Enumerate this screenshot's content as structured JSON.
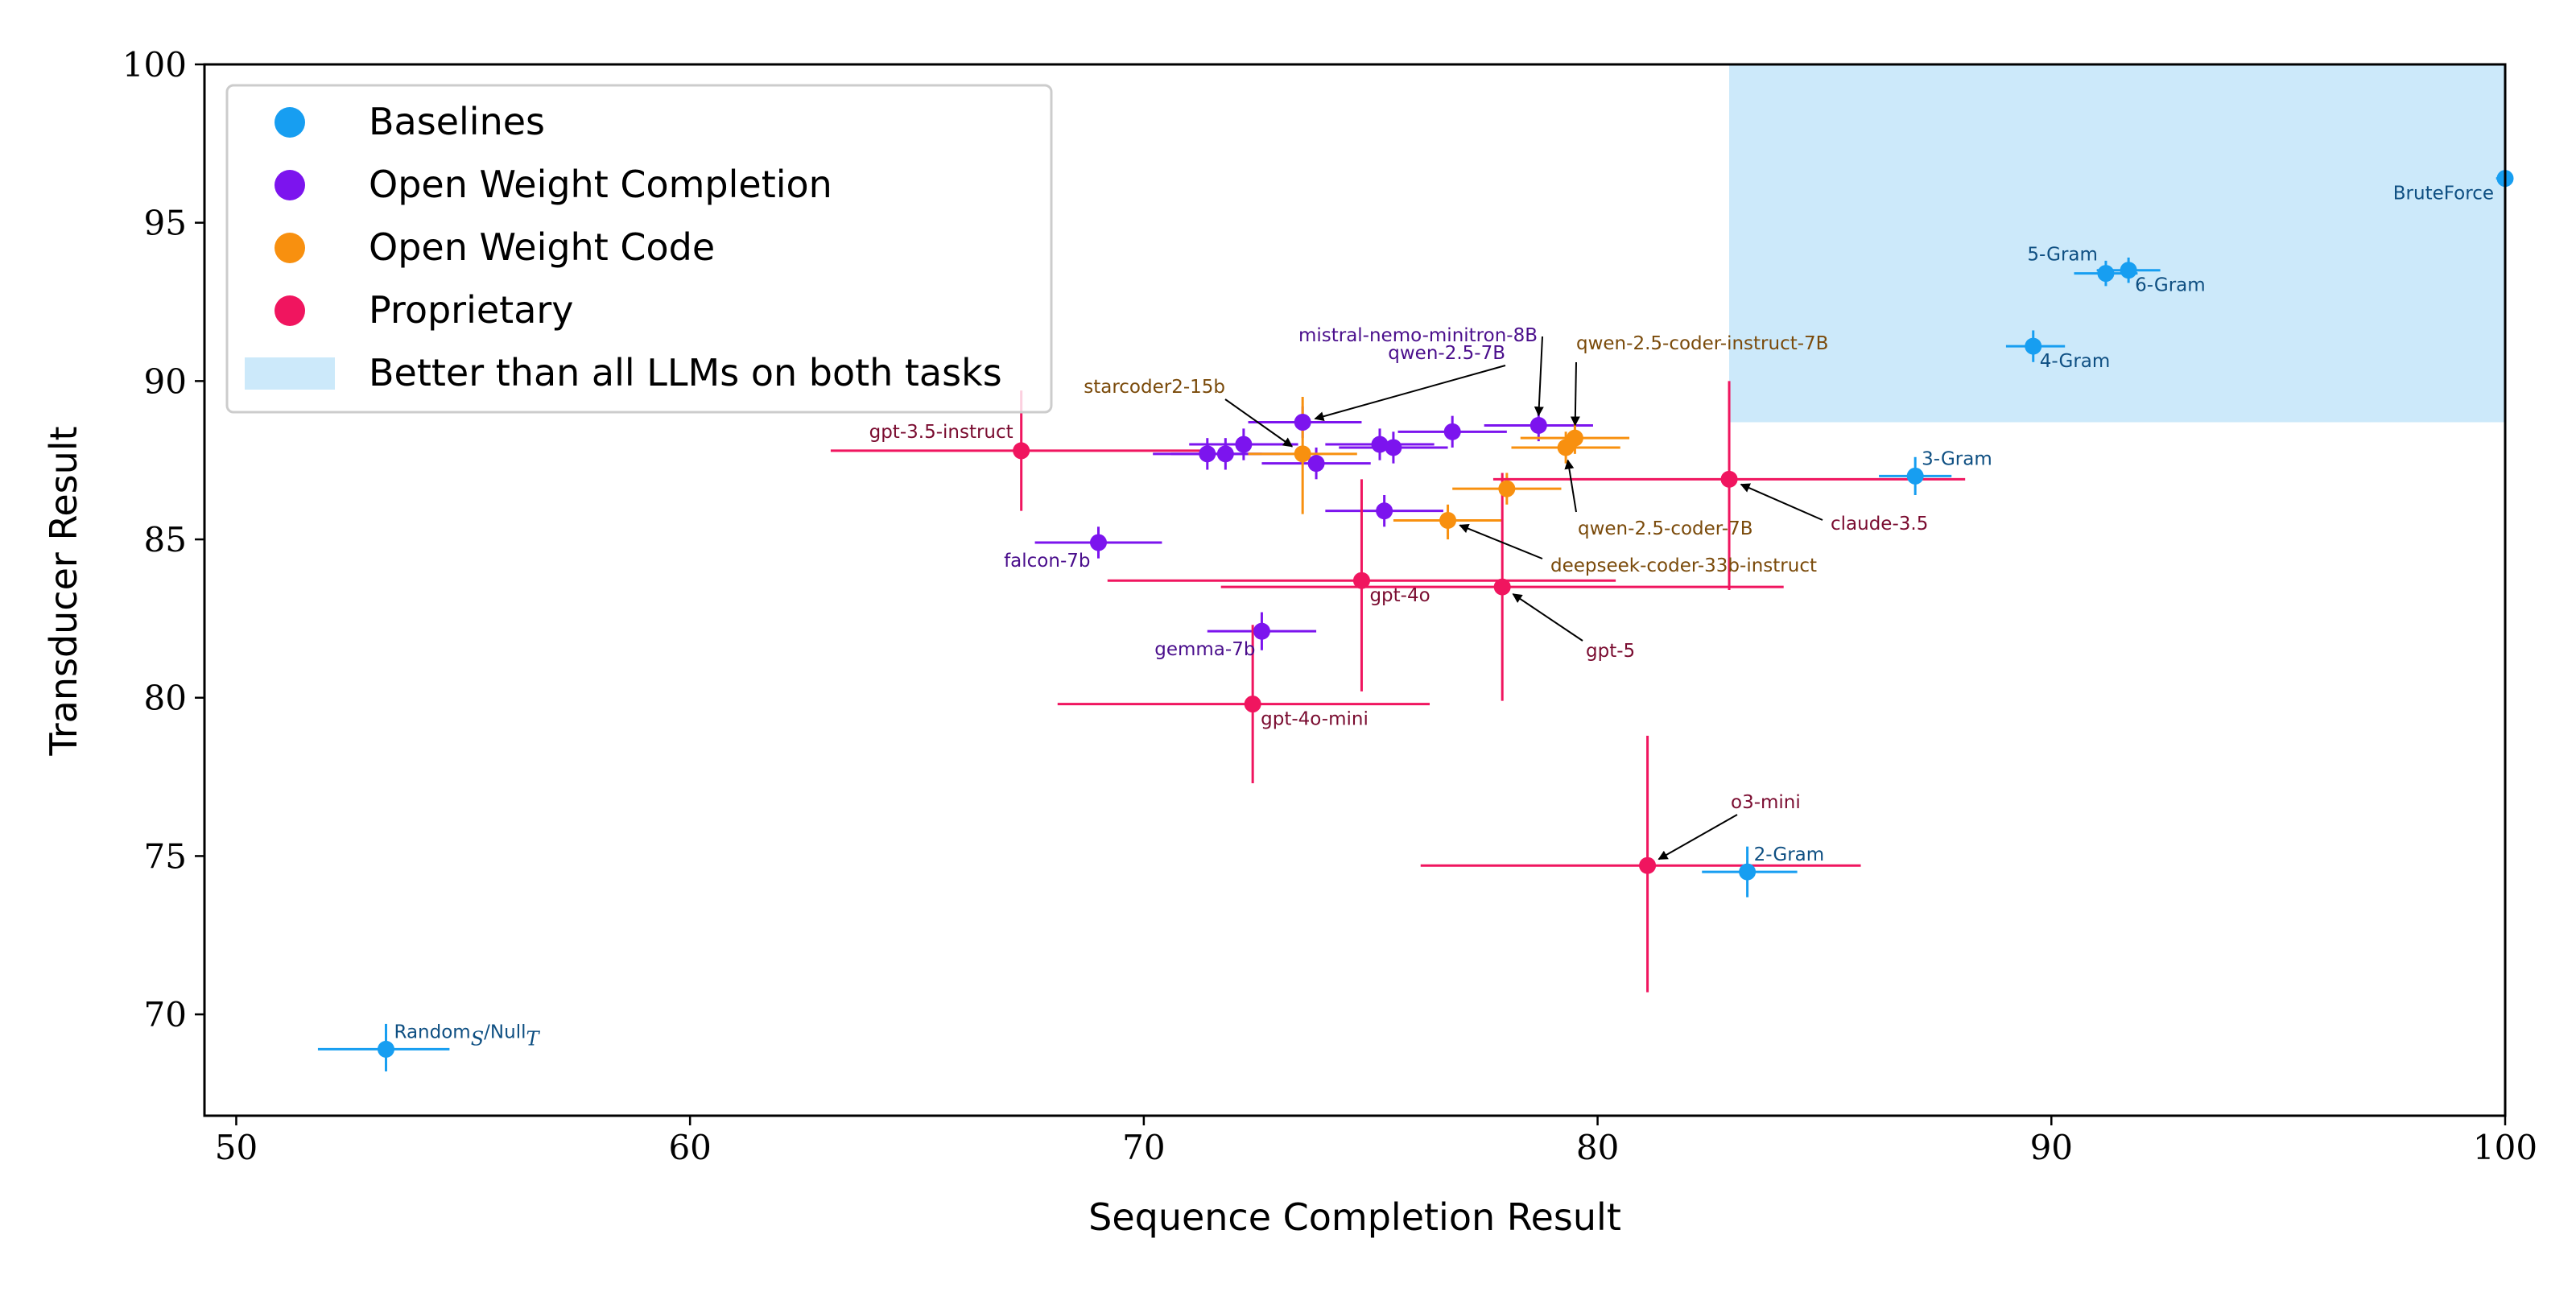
{
  "chart_data": {
    "type": "scatter",
    "title": "",
    "xlabel": "Sequence Completion Result",
    "ylabel": "Transducer Result",
    "xlim": [
      49.3,
      100
    ],
    "ylim": [
      66.8,
      100
    ],
    "xticks": [
      50,
      60,
      70,
      80,
      90,
      100
    ],
    "yticks": [
      70,
      75,
      80,
      85,
      90,
      95,
      100
    ],
    "grid": false,
    "legend_position": "top-left",
    "legend": [
      {
        "label": "Baselines",
        "kind": "marker",
        "color": "#179ef1"
      },
      {
        "label": "Open Weight Completion",
        "kind": "marker",
        "color": "#7c14ee"
      },
      {
        "label": "Open Weight Code",
        "kind": "marker",
        "color": "#f8900f"
      },
      {
        "label": "Proprietary",
        "kind": "marker",
        "color": "#f0155f"
      },
      {
        "label": "Better than all LLMs on both tasks",
        "kind": "patch",
        "color": "#cce9fa"
      }
    ],
    "region": {
      "label": "Better than all LLMs on both tasks",
      "x": [
        82.9,
        100
      ],
      "y": [
        88.7,
        100
      ],
      "color": "#cce9fa"
    },
    "groups": [
      {
        "name": "Baselines",
        "color": "#179ef1",
        "label_color": "#0e4f82"
      },
      {
        "name": "Open Weight Completion",
        "color": "#7c14ee",
        "label_color": "#4a0e8c"
      },
      {
        "name": "Open Weight Code",
        "color": "#f8900f",
        "label_color": "#7a4a0a"
      },
      {
        "name": "Proprietary",
        "color": "#f0155f",
        "label_color": "#7a0c30"
      }
    ],
    "points": [
      {
        "label": "",
        "label_main": "Random",
        "label_sub1": "S",
        "label_sep": "/Null",
        "label_sub2": "T",
        "group": 0,
        "x": 53.3,
        "xerr": [
          51.8,
          54.7
        ],
        "y": 68.9,
        "yerr": [
          68.2,
          69.7
        ]
      },
      {
        "label": "2-Gram",
        "group": 0,
        "x": 83.3,
        "xerr": [
          82.3,
          84.4
        ],
        "y": 74.5,
        "yerr": [
          73.7,
          75.3
        ]
      },
      {
        "label": "3-Gram",
        "group": 0,
        "x": 87.0,
        "xerr": [
          86.2,
          87.8
        ],
        "y": 87.0,
        "yerr": [
          86.4,
          87.6
        ]
      },
      {
        "label": "4-Gram",
        "group": 0,
        "x": 89.6,
        "xerr": [
          89.0,
          90.3
        ],
        "y": 91.1,
        "yerr": [
          90.6,
          91.6
        ]
      },
      {
        "label": "5-Gram",
        "group": 0,
        "x": 91.2,
        "xerr": [
          90.5,
          91.9
        ],
        "y": 93.4,
        "yerr": [
          93.0,
          93.8
        ]
      },
      {
        "label": "6-Gram",
        "group": 0,
        "x": 91.7,
        "xerr": [
          91.0,
          92.4
        ],
        "y": 93.5,
        "yerr": [
          93.1,
          93.9
        ]
      },
      {
        "label": "BruteForce",
        "group": 0,
        "x": 100.0,
        "xerr": [
          99.8,
          100.0
        ],
        "y": 96.4,
        "yerr": [
          96.2,
          96.6
        ]
      },
      {
        "label": "falcon-7b",
        "group": 1,
        "x": 69.0,
        "xerr": [
          67.6,
          70.4
        ],
        "y": 84.9,
        "yerr": [
          84.4,
          85.4
        ]
      },
      {
        "label": "gemma-7b",
        "group": 1,
        "x": 72.6,
        "xerr": [
          71.4,
          73.8
        ],
        "y": 82.1,
        "yerr": [
          81.5,
          82.7
        ]
      },
      {
        "label": "",
        "group": 1,
        "x": 71.4,
        "xerr": [
          70.2,
          72.6
        ],
        "y": 87.7,
        "yerr": [
          87.2,
          88.2
        ]
      },
      {
        "label": "",
        "group": 1,
        "x": 71.8,
        "xerr": [
          70.6,
          73.0
        ],
        "y": 87.7,
        "yerr": [
          87.2,
          88.2
        ]
      },
      {
        "label": "",
        "group": 1,
        "x": 72.2,
        "xerr": [
          71.0,
          73.4
        ],
        "y": 88.0,
        "yerr": [
          87.5,
          88.5
        ]
      },
      {
        "label": "",
        "group": 1,
        "x": 73.8,
        "xerr": [
          72.6,
          75.0
        ],
        "y": 87.4,
        "yerr": [
          86.9,
          87.9
        ]
      },
      {
        "label": "qwen-2.5-7B",
        "group": 1,
        "x": 73.5,
        "xerr": [
          72.3,
          74.8
        ],
        "y": 88.7,
        "yerr": [
          88.2,
          89.2
        ]
      },
      {
        "label": "",
        "group": 1,
        "x": 75.2,
        "xerr": [
          74.0,
          76.4
        ],
        "y": 88.0,
        "yerr": [
          87.5,
          88.5
        ]
      },
      {
        "label": "",
        "group": 1,
        "x": 75.5,
        "xerr": [
          74.3,
          76.7
        ],
        "y": 87.9,
        "yerr": [
          87.4,
          88.4
        ]
      },
      {
        "label": "",
        "group": 1,
        "x": 75.3,
        "xerr": [
          74.0,
          76.6
        ],
        "y": 85.9,
        "yerr": [
          85.4,
          86.4
        ]
      },
      {
        "label": "",
        "group": 1,
        "x": 76.8,
        "xerr": [
          75.6,
          78.0
        ],
        "y": 88.4,
        "yerr": [
          87.9,
          88.9
        ]
      },
      {
        "label": "mistral-nemo-minitron-8B",
        "group": 1,
        "x": 78.7,
        "xerr": [
          77.5,
          79.9
        ],
        "y": 88.6,
        "yerr": [
          88.1,
          89.1
        ]
      },
      {
        "label": "starcoder2-15b",
        "group": 2,
        "x": 73.5,
        "xerr": [
          72.3,
          74.7
        ],
        "y": 87.7,
        "yerr": [
          85.8,
          89.5
        ]
      },
      {
        "label": "deepseek-coder-33b-instruct",
        "group": 2,
        "x": 76.7,
        "xerr": [
          75.5,
          77.9
        ],
        "y": 85.6,
        "yerr": [
          85.0,
          86.1
        ]
      },
      {
        "label": "",
        "group": 2,
        "x": 78.0,
        "xerr": [
          76.8,
          79.2
        ],
        "y": 86.6,
        "yerr": [
          86.1,
          87.1
        ]
      },
      {
        "label": "qwen-2.5-coder-7B",
        "group": 2,
        "x": 79.3,
        "xerr": [
          78.1,
          80.5
        ],
        "y": 87.9,
        "yerr": [
          87.4,
          88.4
        ]
      },
      {
        "label": "qwen-2.5-coder-instruct-7B",
        "group": 2,
        "x": 79.5,
        "xerr": [
          78.3,
          80.7
        ],
        "y": 88.2,
        "yerr": [
          87.7,
          88.7
        ]
      },
      {
        "label": "gpt-3.5-instruct",
        "group": 3,
        "x": 67.3,
        "xerr": [
          63.1,
          71.5
        ],
        "y": 87.8,
        "yerr": [
          85.9,
          89.7
        ]
      },
      {
        "label": "gpt-4o",
        "group": 3,
        "x": 74.8,
        "xerr": [
          69.2,
          80.4
        ],
        "y": 83.7,
        "yerr": [
          80.2,
          86.9
        ]
      },
      {
        "label": "gpt-4o-mini",
        "group": 3,
        "x": 72.4,
        "xerr": [
          68.1,
          76.3
        ],
        "y": 79.8,
        "yerr": [
          77.3,
          82.3
        ]
      },
      {
        "label": "gpt-5",
        "group": 3,
        "x": 77.9,
        "xerr": [
          71.7,
          84.1
        ],
        "y": 83.5,
        "yerr": [
          79.9,
          87.1
        ]
      },
      {
        "label": "claude-3.5",
        "group": 3,
        "x": 82.9,
        "xerr": [
          77.7,
          88.1
        ],
        "y": 86.9,
        "yerr": [
          83.4,
          90.0
        ]
      },
      {
        "label": "o3-mini",
        "group": 3,
        "x": 81.1,
        "xerr": [
          76.1,
          85.8
        ],
        "y": 74.7,
        "yerr": [
          70.7,
          78.8
        ]
      }
    ]
  }
}
